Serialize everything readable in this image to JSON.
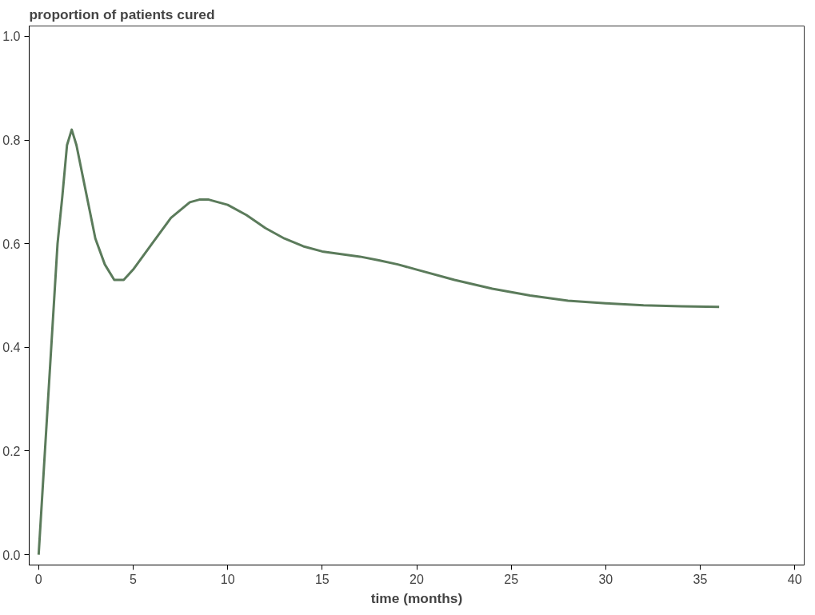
{
  "chart_data": {
    "type": "line",
    "ylabel": "proportion of patients cured",
    "xlabel": "time (months)",
    "x": [
      0,
      0.5,
      1.0,
      1.25,
      1.5,
      1.75,
      2.0,
      2.5,
      3.0,
      3.5,
      4.0,
      4.5,
      5,
      6,
      7,
      8,
      8.5,
      9,
      10,
      11,
      12,
      13,
      14,
      15,
      16,
      17,
      18,
      19,
      20,
      22,
      24,
      26,
      28,
      30,
      32,
      34,
      36
    ],
    "series": [
      {
        "color": "#5b7b5b",
        "values": [
          0,
          0.3,
          0.6,
          0.69,
          0.79,
          0.82,
          0.79,
          0.7,
          0.61,
          0.56,
          0.53,
          0.53,
          0.55,
          0.6,
          0.65,
          0.68,
          0.685,
          0.685,
          0.675,
          0.655,
          0.63,
          0.61,
          0.595,
          0.585,
          0.58,
          0.575,
          0.568,
          0.56,
          0.55,
          0.53,
          0.513,
          0.5,
          0.49,
          0.485,
          0.481,
          0.479,
          0.478
        ]
      }
    ],
    "xlim": [
      -0.5,
      40.5
    ],
    "ylim": [
      -0.02,
      1.02
    ],
    "xticks": [
      0,
      5,
      10,
      15,
      20,
      25,
      30,
      35,
      40
    ],
    "yticks": [
      {
        "value": 0,
        "label": "0.0"
      },
      0.2,
      0.4,
      0.6,
      0.8,
      {
        "value": 1,
        "label": "1.0"
      }
    ],
    "grid": false,
    "line_style": "solid"
  }
}
